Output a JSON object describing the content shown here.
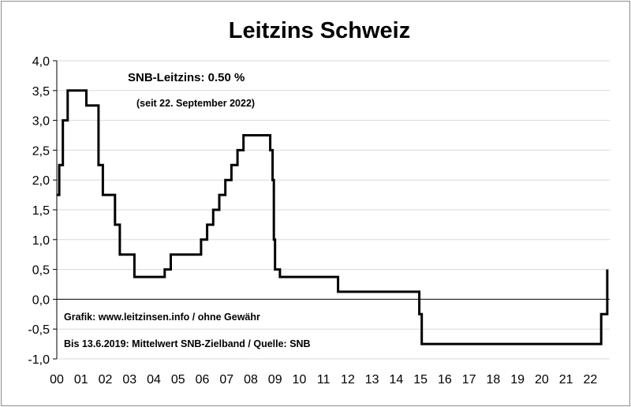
{
  "chart_data": {
    "type": "line",
    "title": "Leitzins Schweiz",
    "xlabel": "",
    "ylabel": "",
    "xlim": [
      2000,
      2022.8
    ],
    "ylim": [
      -1.0,
      4.0
    ],
    "grid": true,
    "y_ticks": [
      "4,0",
      "3,5",
      "3,0",
      "2,5",
      "2,0",
      "1,5",
      "1,0",
      "0,5",
      "0,0",
      "-0,5",
      "-1,0"
    ],
    "y_tick_values": [
      4.0,
      3.5,
      3.0,
      2.5,
      2.0,
      1.5,
      1.0,
      0.5,
      0.0,
      -0.5,
      -1.0
    ],
    "x_ticks": [
      "00",
      "01",
      "02",
      "03",
      "04",
      "05",
      "06",
      "07",
      "08",
      "09",
      "10",
      "11",
      "12",
      "13",
      "14",
      "15",
      "16",
      "17",
      "18",
      "19",
      "20",
      "21",
      "22"
    ],
    "x_tick_values": [
      2000,
      2001,
      2002,
      2003,
      2004,
      2005,
      2006,
      2007,
      2008,
      2009,
      2010,
      2011,
      2012,
      2013,
      2014,
      2015,
      2016,
      2017,
      2018,
      2019,
      2020,
      2021,
      2022
    ],
    "annotations": [
      "SNB-Leitzins: 0.50 %",
      "(seit 22. September 2022)",
      "Grafik: www.leitzinsen.info / ohne Gewähr",
      "Bis 13.6.2019: Mittelwert SNB-Zielband / Quelle: SNB"
    ],
    "series": [
      {
        "style": "step",
        "points": [
          [
            2000.0,
            1.75
          ],
          [
            2000.1,
            2.25
          ],
          [
            2000.25,
            3.0
          ],
          [
            2000.45,
            3.5
          ],
          [
            2001.22,
            3.25
          ],
          [
            2001.72,
            2.25
          ],
          [
            2001.9,
            1.75
          ],
          [
            2002.4,
            1.25
          ],
          [
            2002.6,
            0.75
          ],
          [
            2003.2,
            0.375
          ],
          [
            2004.45,
            0.5
          ],
          [
            2004.7,
            0.75
          ],
          [
            2005.95,
            1.0
          ],
          [
            2006.2,
            1.25
          ],
          [
            2006.45,
            1.5
          ],
          [
            2006.7,
            1.75
          ],
          [
            2006.95,
            2.0
          ],
          [
            2007.2,
            2.25
          ],
          [
            2007.45,
            2.5
          ],
          [
            2007.7,
            2.75
          ],
          [
            2008.8,
            2.5
          ],
          [
            2008.9,
            2.0
          ],
          [
            2008.95,
            1.0
          ],
          [
            2009.0,
            0.5
          ],
          [
            2009.2,
            0.375
          ],
          [
            2011.6,
            0.125
          ],
          [
            2014.95,
            -0.25
          ],
          [
            2015.05,
            -0.75
          ],
          [
            2022.45,
            -0.25
          ],
          [
            2022.7,
            0.5
          ]
        ]
      }
    ]
  }
}
